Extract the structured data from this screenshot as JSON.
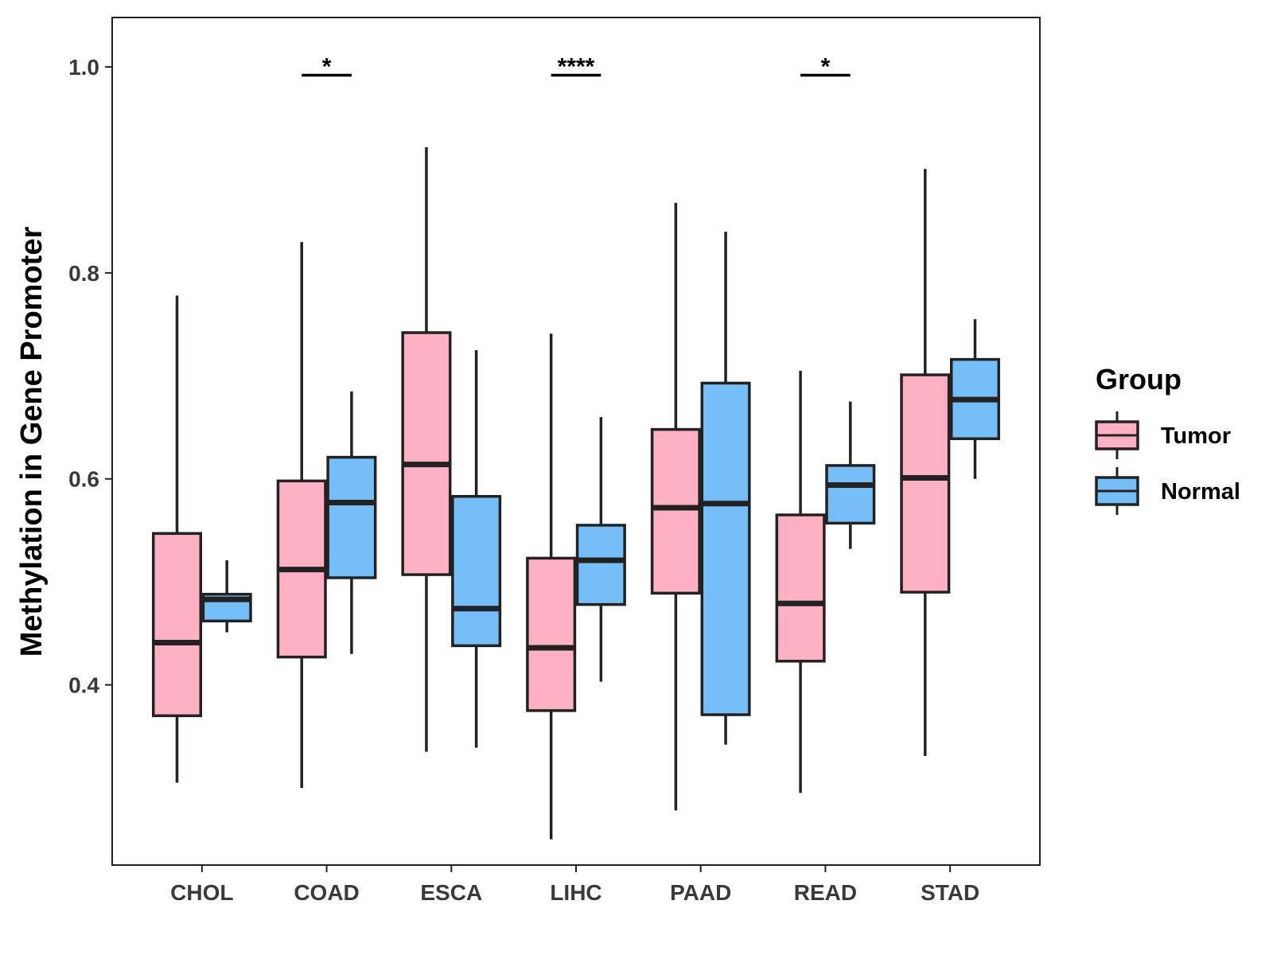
{
  "chart_data": {
    "type": "boxplot",
    "title": "",
    "xlabel": "",
    "ylabel": "Methylation in Gene Promoter",
    "ylim": [
      0.225,
      1.048
    ],
    "yticks": [
      0.4,
      0.6,
      0.8,
      1.0
    ],
    "ytick_labels": [
      "0.4",
      "0.6",
      "0.8",
      "1.0"
    ],
    "grid": false,
    "categories": [
      "CHOL",
      "COAD",
      "ESCA",
      "LIHC",
      "PAAD",
      "READ",
      "STAD"
    ],
    "legend": {
      "title": "Group",
      "position": "right",
      "entries": [
        {
          "name": "Tumor",
          "color": "#FFB0C2"
        },
        {
          "name": "Normal",
          "color": "#75BEF8"
        }
      ]
    },
    "series": [
      {
        "name": "Tumor",
        "color": "#FFB0C2",
        "boxes": [
          {
            "category": "CHOL",
            "min": 0.305,
            "q1": 0.37,
            "median": 0.441,
            "q3": 0.547,
            "max": 0.778
          },
          {
            "category": "COAD",
            "min": 0.3,
            "q1": 0.427,
            "median": 0.512,
            "q3": 0.598,
            "max": 0.83
          },
          {
            "category": "ESCA",
            "min": 0.335,
            "q1": 0.507,
            "median": 0.614,
            "q3": 0.742,
            "max": 0.922
          },
          {
            "category": "LIHC",
            "min": 0.25,
            "q1": 0.375,
            "median": 0.436,
            "q3": 0.523,
            "max": 0.741
          },
          {
            "category": "PAAD",
            "min": 0.278,
            "q1": 0.489,
            "median": 0.572,
            "q3": 0.648,
            "max": 0.868
          },
          {
            "category": "READ",
            "min": 0.295,
            "q1": 0.423,
            "median": 0.479,
            "q3": 0.565,
            "max": 0.705
          },
          {
            "category": "STAD",
            "min": 0.331,
            "q1": 0.49,
            "median": 0.601,
            "q3": 0.701,
            "max": 0.901
          }
        ]
      },
      {
        "name": "Normal",
        "color": "#75BEF8",
        "boxes": [
          {
            "category": "CHOL",
            "min": 0.451,
            "q1": 0.462,
            "median": 0.483,
            "q3": 0.488,
            "max": 0.521
          },
          {
            "category": "COAD",
            "min": 0.43,
            "q1": 0.504,
            "median": 0.577,
            "q3": 0.621,
            "max": 0.685
          },
          {
            "category": "ESCA",
            "min": 0.339,
            "q1": 0.438,
            "median": 0.474,
            "q3": 0.583,
            "max": 0.725
          },
          {
            "category": "LIHC",
            "min": 0.403,
            "q1": 0.478,
            "median": 0.521,
            "q3": 0.555,
            "max": 0.66
          },
          {
            "category": "PAAD",
            "min": 0.342,
            "q1": 0.371,
            "median": 0.576,
            "q3": 0.693,
            "max": 0.84
          },
          {
            "category": "READ",
            "min": 0.532,
            "q1": 0.557,
            "median": 0.594,
            "q3": 0.613,
            "max": 0.675
          },
          {
            "category": "STAD",
            "min": 0.6,
            "q1": 0.639,
            "median": 0.677,
            "q3": 0.716,
            "max": 0.755
          }
        ]
      }
    ],
    "annotations": [
      {
        "category": "COAD",
        "label": "*",
        "y": 0.992
      },
      {
        "category": "LIHC",
        "label": "****",
        "y": 0.992
      },
      {
        "category": "READ",
        "label": "*",
        "y": 0.992
      }
    ]
  }
}
